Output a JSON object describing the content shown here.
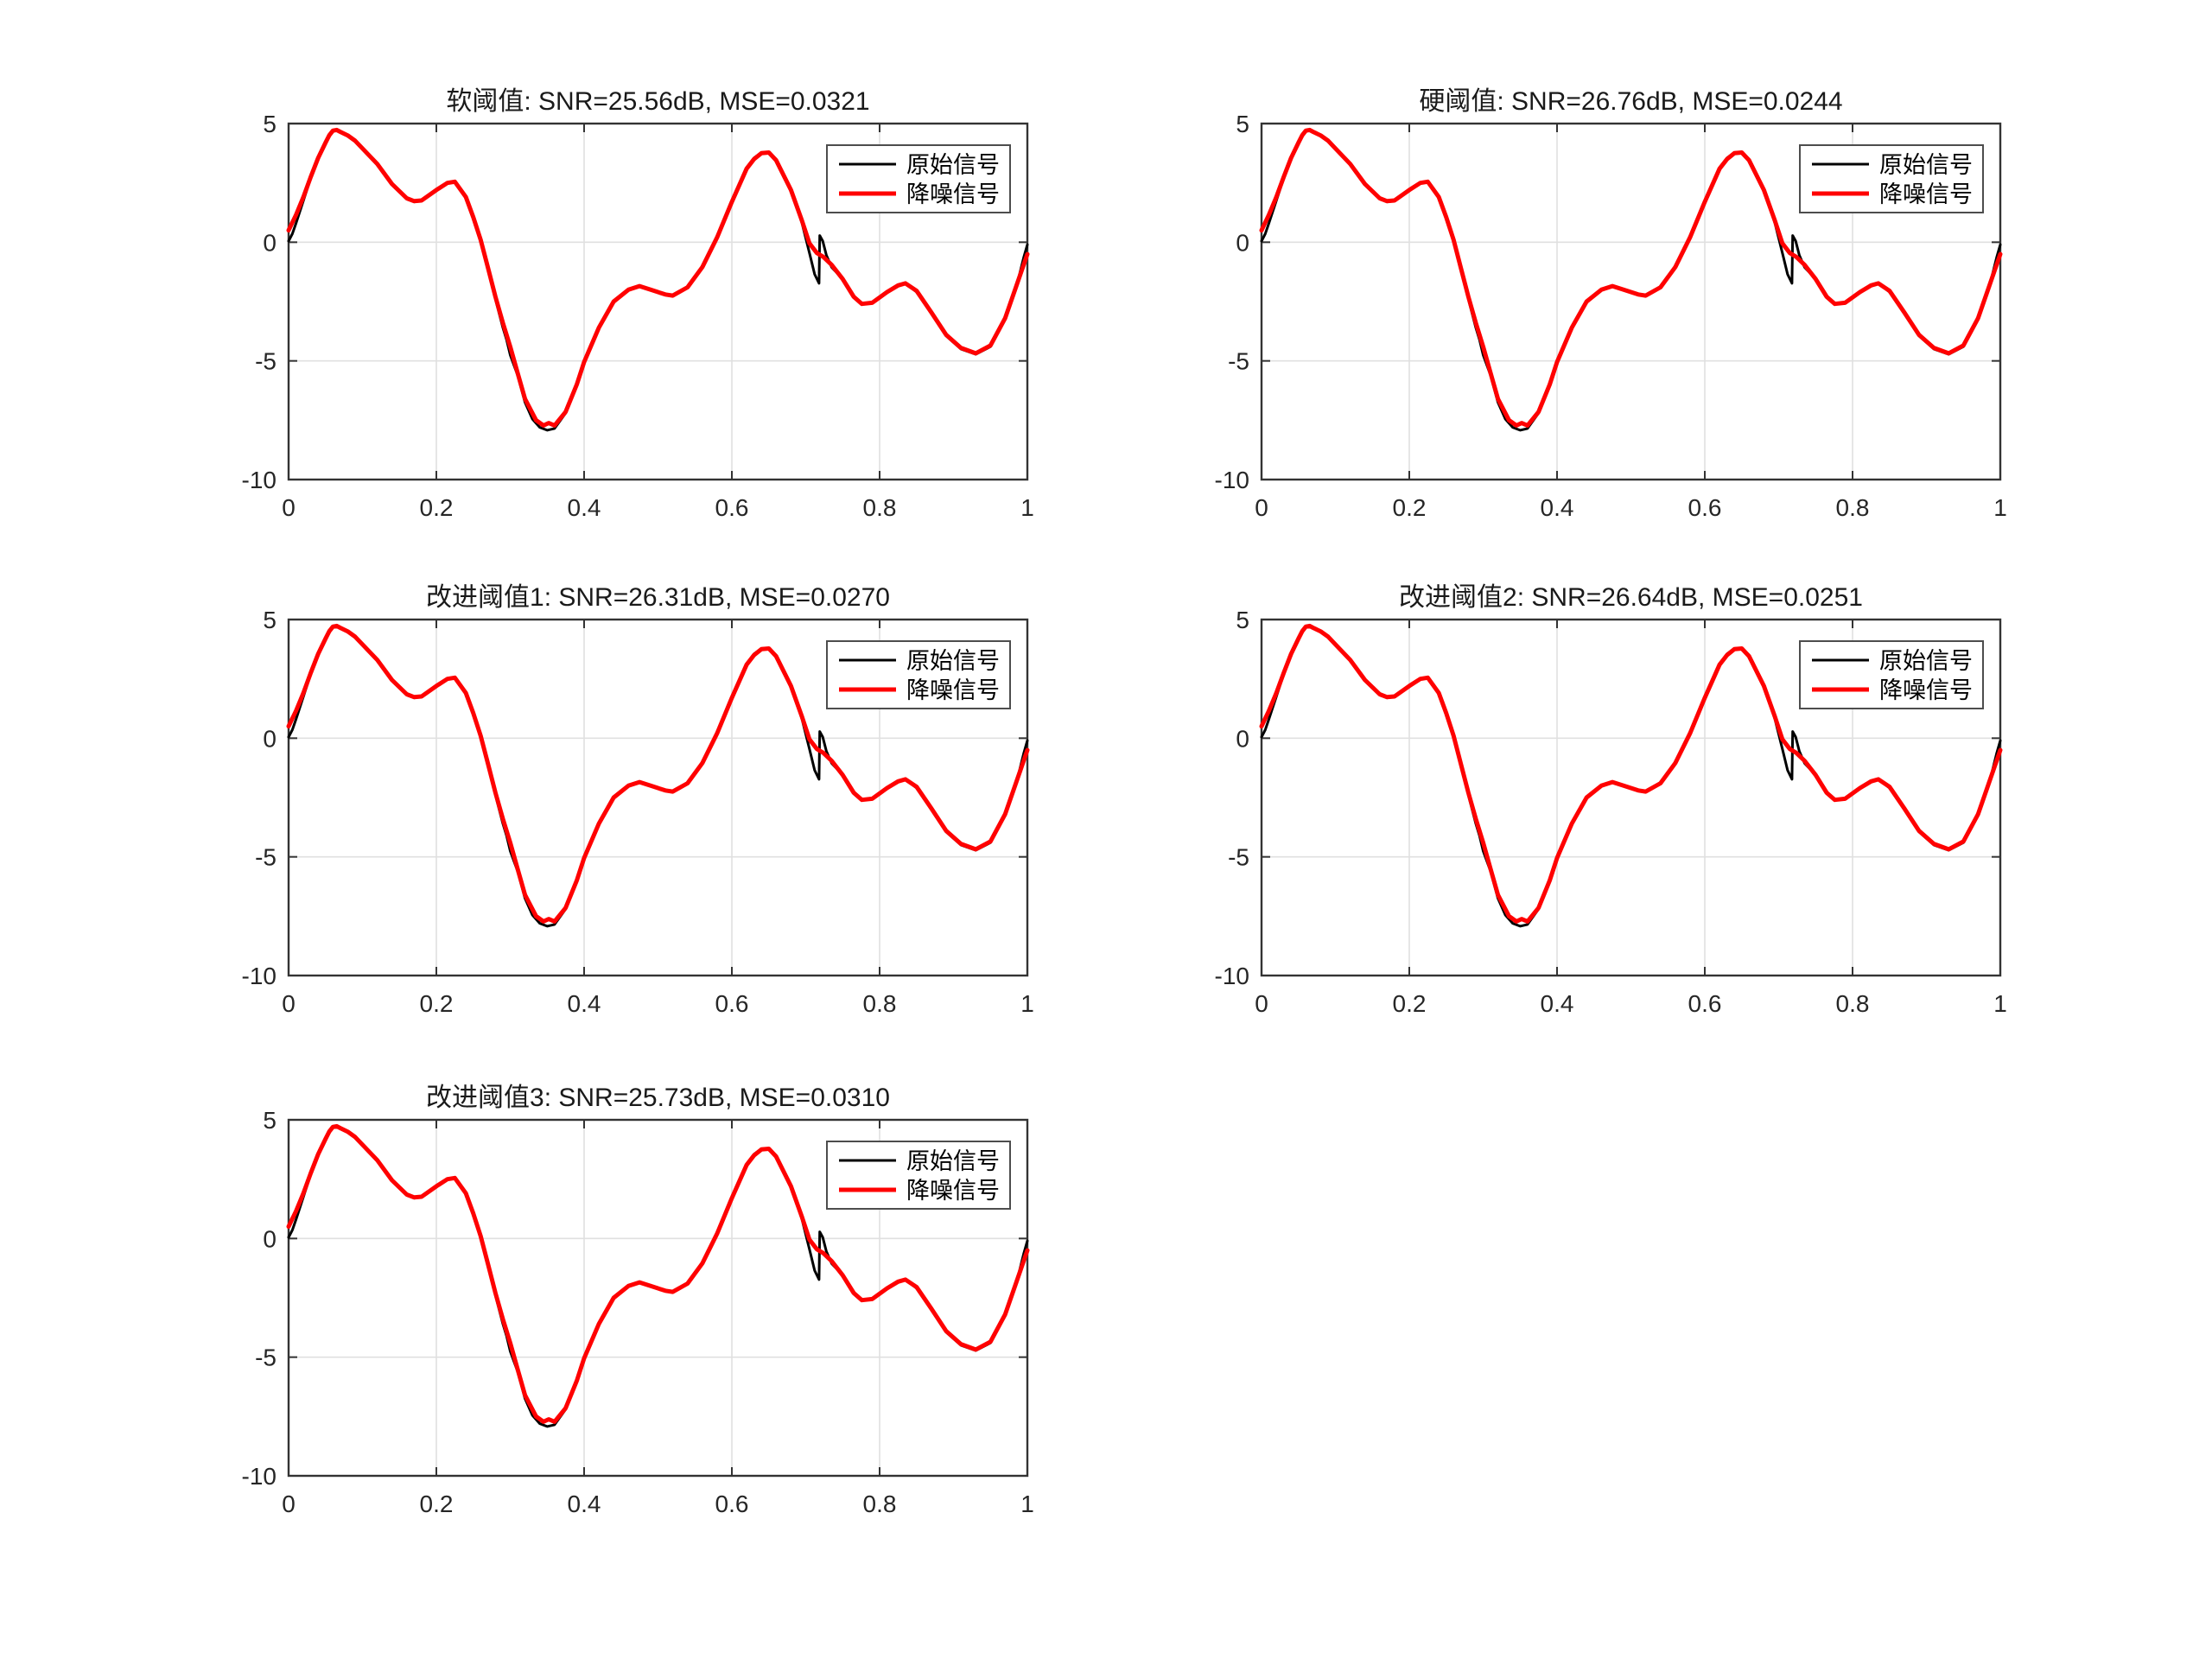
{
  "figure": {
    "background": "#ffffff",
    "description": "Wavelet threshold denoising comparison figure with five subplots"
  },
  "colors": {
    "original_series": "#000000",
    "denoised_series": "#ff0000",
    "grid": "#e0e0e0",
    "axis": "#333333",
    "tick_label": "#262626",
    "title": "#1a1a1a",
    "legend_border": "#4d4d4d",
    "legend_background": "#ffffff"
  },
  "chart_data": {
    "type": "line",
    "figure_layout": "3x2 grid of subplots, bottom-right cell empty",
    "subplots": [
      {
        "title": "软阈值: SNR=25.56dB, MSE=0.0321",
        "method": "软阈值",
        "snr_db": 25.56,
        "mse": 0.0321
      },
      {
        "title": "硬阈值: SNR=26.76dB, MSE=0.0244",
        "method": "硬阈值",
        "snr_db": 26.76,
        "mse": 0.0244
      },
      {
        "title": "改进阈值1: SNR=26.31dB, MSE=0.0270",
        "method": "改进阈值1",
        "snr_db": 26.31,
        "mse": 0.027
      },
      {
        "title": "改进阈值2: SNR=26.64dB, MSE=0.0251",
        "method": "改进阈值2",
        "snr_db": 26.64,
        "mse": 0.0251
      },
      {
        "title": "改进阈值3: SNR=25.73dB, MSE=0.0310",
        "method": "改进阈值3",
        "snr_db": 25.73,
        "mse": 0.031
      }
    ],
    "shared": {
      "xlim": [
        0,
        1
      ],
      "ylim": [
        -10,
        5
      ],
      "xticks": [
        "0",
        "0.2",
        "0.4",
        "0.6",
        "0.8",
        "1"
      ],
      "xtick_values": [
        0,
        0.2,
        0.4,
        0.6,
        0.8,
        1
      ],
      "yticks": [
        "5",
        "0",
        "-5",
        "-10"
      ],
      "ytick_values": [
        5,
        0,
        -5,
        -10
      ],
      "grid": true,
      "grid_x": [
        0.2,
        0.4,
        0.6,
        0.8
      ],
      "grid_y": [
        0,
        -5
      ],
      "legend": [
        "原始信号",
        "降噪信号"
      ],
      "legend_position": "northeast",
      "series": [
        {
          "id": "original",
          "name": "原始信号",
          "color": "#000000",
          "line_width": 3,
          "points": [
            [
              0.0,
              0.05
            ],
            [
              0.005,
              0.35
            ],
            [
              0.01,
              0.8
            ],
            [
              0.02,
              1.75
            ],
            [
              0.03,
              2.7
            ],
            [
              0.04,
              3.55
            ],
            [
              0.05,
              4.25
            ],
            [
              0.055,
              4.55
            ],
            [
              0.06,
              4.72
            ],
            [
              0.065,
              4.75
            ],
            [
              0.07,
              4.68
            ],
            [
              0.08,
              4.5
            ],
            [
              0.09,
              4.28
            ],
            [
              0.1,
              3.95
            ],
            [
              0.12,
              3.3
            ],
            [
              0.14,
              2.45
            ],
            [
              0.16,
              1.82
            ],
            [
              0.17,
              1.7
            ],
            [
              0.18,
              1.74
            ],
            [
              0.2,
              2.2
            ],
            [
              0.215,
              2.5
            ],
            [
              0.225,
              2.55
            ],
            [
              0.24,
              1.9
            ],
            [
              0.25,
              1.05
            ],
            [
              0.26,
              0.1
            ],
            [
              0.27,
              -1.15
            ],
            [
              0.28,
              -2.4
            ],
            [
              0.29,
              -3.6
            ],
            [
              0.295,
              -4.1
            ],
            [
              0.3,
              -4.75
            ],
            [
              0.31,
              -5.6
            ],
            [
              0.32,
              -6.75
            ],
            [
              0.33,
              -7.45
            ],
            [
              0.34,
              -7.8
            ],
            [
              0.35,
              -7.92
            ],
            [
              0.36,
              -7.85
            ],
            [
              0.375,
              -7.2
            ],
            [
              0.39,
              -6.0
            ],
            [
              0.4,
              -5.05
            ],
            [
              0.42,
              -3.6
            ],
            [
              0.44,
              -2.5
            ],
            [
              0.46,
              -2.0
            ],
            [
              0.475,
              -1.85
            ],
            [
              0.49,
              -2.0
            ],
            [
              0.51,
              -2.2
            ],
            [
              0.52,
              -2.25
            ],
            [
              0.54,
              -1.9
            ],
            [
              0.56,
              -1.05
            ],
            [
              0.58,
              0.2
            ],
            [
              0.6,
              1.7
            ],
            [
              0.62,
              3.1
            ],
            [
              0.63,
              3.55
            ],
            [
              0.64,
              3.78
            ],
            [
              0.65,
              3.8
            ],
            [
              0.66,
              3.5
            ],
            [
              0.68,
              2.25
            ],
            [
              0.695,
              0.8
            ],
            [
              0.705,
              -0.45
            ],
            [
              0.712,
              -1.35
            ],
            [
              0.718,
              -1.73
            ],
            [
              0.719,
              0.28
            ],
            [
              0.723,
              0.05
            ],
            [
              0.728,
              -0.55
            ],
            [
              0.735,
              -1.05
            ],
            [
              0.75,
              -1.55
            ],
            [
              0.765,
              -2.3
            ],
            [
              0.776,
              -2.6
            ],
            [
              0.79,
              -2.55
            ],
            [
              0.81,
              -2.1
            ],
            [
              0.825,
              -1.82
            ],
            [
              0.835,
              -1.73
            ],
            [
              0.85,
              -2.1
            ],
            [
              0.87,
              -3.0
            ],
            [
              0.89,
              -3.95
            ],
            [
              0.91,
              -4.5
            ],
            [
              0.93,
              -4.72
            ],
            [
              0.95,
              -4.4
            ],
            [
              0.97,
              -3.25
            ],
            [
              0.985,
              -1.9
            ],
            [
              0.995,
              -0.65
            ],
            [
              1.0,
              -0.1
            ]
          ]
        },
        {
          "id": "denoised",
          "name": "降噪信号",
          "color": "#ff0000",
          "line_width": 5,
          "points": [
            [
              0.0,
              0.5
            ],
            [
              0.01,
              1.15
            ],
            [
              0.02,
              1.9
            ],
            [
              0.03,
              2.75
            ],
            [
              0.04,
              3.55
            ],
            [
              0.05,
              4.2
            ],
            [
              0.055,
              4.5
            ],
            [
              0.06,
              4.7
            ],
            [
              0.065,
              4.73
            ],
            [
              0.07,
              4.65
            ],
            [
              0.08,
              4.5
            ],
            [
              0.09,
              4.28
            ],
            [
              0.1,
              3.95
            ],
            [
              0.12,
              3.3
            ],
            [
              0.14,
              2.45
            ],
            [
              0.16,
              1.85
            ],
            [
              0.17,
              1.73
            ],
            [
              0.18,
              1.76
            ],
            [
              0.2,
              2.2
            ],
            [
              0.215,
              2.5
            ],
            [
              0.225,
              2.55
            ],
            [
              0.24,
              1.9
            ],
            [
              0.25,
              1.05
            ],
            [
              0.26,
              0.1
            ],
            [
              0.27,
              -1.1
            ],
            [
              0.28,
              -2.3
            ],
            [
              0.29,
              -3.4
            ],
            [
              0.3,
              -4.4
            ],
            [
              0.31,
              -5.5
            ],
            [
              0.32,
              -6.6
            ],
            [
              0.335,
              -7.5
            ],
            [
              0.345,
              -7.72
            ],
            [
              0.352,
              -7.62
            ],
            [
              0.36,
              -7.72
            ],
            [
              0.375,
              -7.15
            ],
            [
              0.39,
              -6.0
            ],
            [
              0.4,
              -5.05
            ],
            [
              0.42,
              -3.6
            ],
            [
              0.44,
              -2.5
            ],
            [
              0.46,
              -2.0
            ],
            [
              0.475,
              -1.85
            ],
            [
              0.49,
              -2.0
            ],
            [
              0.51,
              -2.2
            ],
            [
              0.52,
              -2.25
            ],
            [
              0.54,
              -1.9
            ],
            [
              0.56,
              -1.05
            ],
            [
              0.58,
              0.2
            ],
            [
              0.6,
              1.7
            ],
            [
              0.62,
              3.1
            ],
            [
              0.63,
              3.5
            ],
            [
              0.64,
              3.75
            ],
            [
              0.65,
              3.78
            ],
            [
              0.66,
              3.45
            ],
            [
              0.68,
              2.2
            ],
            [
              0.695,
              0.9
            ],
            [
              0.705,
              -0.05
            ],
            [
              0.715,
              -0.45
            ],
            [
              0.724,
              -0.62
            ],
            [
              0.735,
              -0.95
            ],
            [
              0.75,
              -1.55
            ],
            [
              0.765,
              -2.3
            ],
            [
              0.776,
              -2.6
            ],
            [
              0.79,
              -2.55
            ],
            [
              0.81,
              -2.1
            ],
            [
              0.825,
              -1.82
            ],
            [
              0.835,
              -1.73
            ],
            [
              0.85,
              -2.05
            ],
            [
              0.87,
              -2.95
            ],
            [
              0.89,
              -3.9
            ],
            [
              0.91,
              -4.45
            ],
            [
              0.93,
              -4.68
            ],
            [
              0.95,
              -4.35
            ],
            [
              0.97,
              -3.2
            ],
            [
              0.985,
              -1.85
            ],
            [
              1.0,
              -0.5
            ]
          ]
        }
      ]
    }
  }
}
